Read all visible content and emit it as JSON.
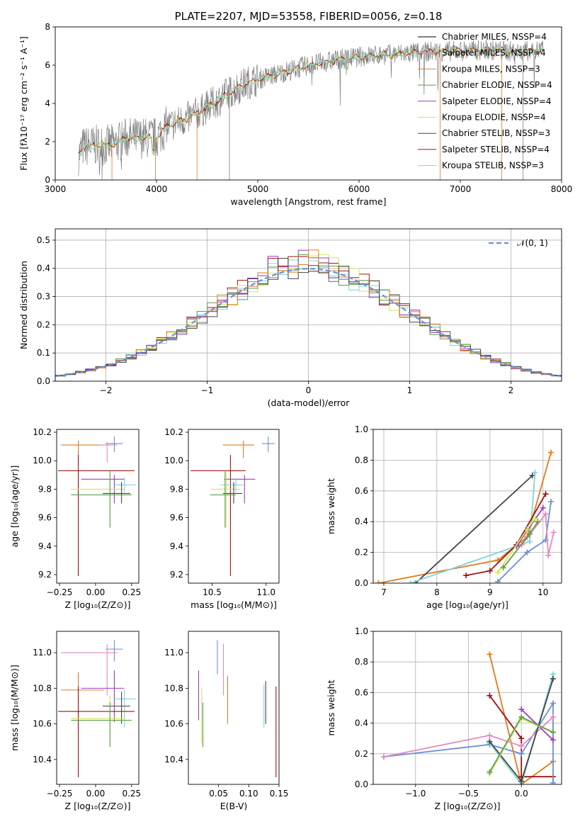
{
  "colors": {
    "chab_miles": "#6a8fd8",
    "salp_miles": "#e07a1f",
    "krou_miles": "#d9893f",
    "chab_elod": "#5f9e4c",
    "salp_elod": "#9b3fc0",
    "krou_elod": "#d5e35a",
    "chab_stel": "#444444",
    "salp_stel": "#a01010",
    "krou_stel": "#7fd3dc",
    "pink": "#e58ac0",
    "data": "#808080",
    "gauss": "#6a8fd8"
  },
  "chart_data": [
    {
      "type": "line",
      "title": "PLATE=2207, MJD=53558, FIBERID=0056, z=0.18",
      "xlabel": "wavelength [Angstrom, rest frame]",
      "ylabel": "Flux [fλ10⁻¹⁷ erg cm⁻² s⁻¹ A⁻¹]",
      "xlim": [
        3000,
        8000
      ],
      "ylim": [
        0,
        8
      ],
      "xticks": [
        "3000",
        "4000",
        "5000",
        "6000",
        "7000",
        "8000"
      ],
      "yticks": [
        "0",
        "2",
        "4",
        "6",
        "8"
      ],
      "legend_position": "top-right",
      "legend": [
        "Chabrier MILES, NSSP=4",
        "Salpeter MILES, NSSP=4",
        "Kroupa MILES, NSSP=3",
        "Chabrier ELODIE, NSSP=4",
        "Salpeter ELODIE, NSSP=4",
        "Kroupa ELODIE, NSSP=4",
        "Chabrier STELIB, NSSP=3",
        "Salpeter STELIB, NSSP=4",
        "Kroupa STELIB, NSSP=3"
      ],
      "legend_colors": [
        "#000000",
        "#e58ac0",
        "#d9893f",
        "#5f9e4c",
        "#9b3fc0",
        "#d5e35a",
        "#444444",
        "#a01010",
        "#7fd3dc"
      ],
      "model_continuum": [
        [
          3230,
          1.3
        ],
        [
          3280,
          1.75
        ],
        [
          3400,
          1.8
        ],
        [
          3500,
          1.8
        ],
        [
          3600,
          1.9
        ],
        [
          3700,
          2.2
        ],
        [
          3800,
          2.2
        ],
        [
          3900,
          2.2
        ],
        [
          4000,
          2.2
        ],
        [
          4100,
          2.8
        ],
        [
          4300,
          3.2
        ],
        [
          4500,
          3.8
        ],
        [
          4700,
          4.5
        ],
        [
          4900,
          5.1
        ],
        [
          5100,
          5.4
        ],
        [
          5300,
          5.7
        ],
        [
          5500,
          6.0
        ],
        [
          5800,
          6.3
        ],
        [
          6100,
          6.5
        ],
        [
          6400,
          6.6
        ],
        [
          6700,
          6.7
        ],
        [
          7000,
          6.75
        ],
        [
          7300,
          6.8
        ],
        [
          7600,
          6.7
        ],
        [
          7800,
          6.8
        ]
      ]
    },
    {
      "type": "line",
      "xlabel": "(data-model)/error",
      "ylabel": "Normed distribution",
      "xlim": [
        -2.5,
        2.5
      ],
      "ylim": [
        0,
        0.54
      ],
      "xticks": [
        "−2",
        "−1",
        "0",
        "1",
        "2"
      ],
      "yticks": [
        "0.0",
        "0.1",
        "0.2",
        "0.3",
        "0.4",
        "0.5"
      ],
      "legend": [
        "𝒩(0, 1)"
      ],
      "legend_position": "top-right",
      "grid": true
    },
    {
      "type": "scatter",
      "xlabel": "Z [log₁₀(Z/Z⊙)]",
      "ylabel": "age  [log₁₀(age/yr)]",
      "xlim": [
        -0.27,
        0.3
      ],
      "ylim": [
        9.14,
        10.22
      ],
      "xticks": [
        "−0.25",
        "0.00",
        "0.25"
      ],
      "yticks": [
        "9.2",
        "9.4",
        "9.6",
        "9.8",
        "10.0",
        "10.2"
      ],
      "points": [
        {
          "c": "chab_miles",
          "x": 0.13,
          "y": 10.12,
          "xl": 0.07,
          "xh": 0.19,
          "yl": 10.06,
          "yh": 10.17
        },
        {
          "c": "salp_miles",
          "x": -0.12,
          "y": 10.11,
          "xl": -0.24,
          "xh": 0.06,
          "yl": 10.02,
          "yh": 10.14
        },
        {
          "c": "pink",
          "x": 0.08,
          "y": 10.11,
          "xl": 0.02,
          "xh": 0.15,
          "yl": 9.99,
          "yh": 10.13
        },
        {
          "c": "salp_stel",
          "x": -0.12,
          "y": 9.93,
          "xl": -0.26,
          "xh": 0.27,
          "yl": 9.19,
          "yh": 10.04
        },
        {
          "c": "salp_elod",
          "x": 0.13,
          "y": 9.87,
          "xl": -0.1,
          "xh": 0.2,
          "yl": 9.7,
          "yh": 9.9
        },
        {
          "c": "krou_stel",
          "x": 0.2,
          "y": 9.83,
          "xl": 0.13,
          "xh": 0.28,
          "yl": 9.78,
          "yh": 9.88
        },
        {
          "c": "krou_elod",
          "x": 0.1,
          "y": 9.8,
          "xl": -0.17,
          "xh": 0.2,
          "yl": 9.53,
          "yh": 9.92
        },
        {
          "c": "chab_stel",
          "x": 0.18,
          "y": 9.77,
          "xl": 0.05,
          "xh": 0.24,
          "yl": 9.7,
          "yh": 9.85
        },
        {
          "c": "chab_elod",
          "x": 0.1,
          "y": 9.76,
          "xl": -0.17,
          "xh": 0.25,
          "yl": 9.53,
          "yh": 9.93
        }
      ]
    },
    {
      "type": "scatter",
      "xlabel": "mass [log₁₀(M/M⊙)]",
      "xlim": [
        10.28,
        11.12
      ],
      "ylim": [
        9.14,
        10.22
      ],
      "xticks": [
        "10.5",
        "11.0"
      ],
      "yticks": [
        "9.2",
        "9.4",
        "9.6",
        "9.8",
        "10.0",
        "10.2"
      ],
      "points": [
        {
          "c": "chab_miles",
          "x": 11.02,
          "y": 10.12,
          "xl": 10.96,
          "xh": 11.08,
          "yl": 10.06,
          "yh": 10.17
        },
        {
          "c": "salp_miles",
          "x": 10.79,
          "y": 10.11,
          "xl": 10.6,
          "xh": 10.89,
          "yl": 10.02,
          "yh": 10.14
        },
        {
          "c": "salp_stel",
          "x": 10.67,
          "y": 9.93,
          "xl": 10.3,
          "xh": 10.81,
          "yl": 9.19,
          "yh": 10.04
        },
        {
          "c": "salp_elod",
          "x": 10.8,
          "y": 9.87,
          "xl": 10.61,
          "xh": 10.9,
          "yl": 9.7,
          "yh": 9.9
        },
        {
          "c": "krou_stel",
          "x": 10.72,
          "y": 9.83,
          "xl": 10.58,
          "xh": 10.79,
          "yl": 9.78,
          "yh": 9.88
        },
        {
          "c": "krou_elod",
          "x": 10.63,
          "y": 9.8,
          "xl": 10.49,
          "xh": 10.76,
          "yl": 9.53,
          "yh": 9.92
        },
        {
          "c": "chab_stel",
          "x": 10.7,
          "y": 9.77,
          "xl": 10.6,
          "xh": 10.78,
          "yl": 9.7,
          "yh": 9.85
        },
        {
          "c": "chab_elod",
          "x": 10.62,
          "y": 9.76,
          "xl": 10.48,
          "xh": 10.72,
          "yl": 9.53,
          "yh": 9.93
        }
      ]
    },
    {
      "type": "line",
      "xlabel": "age  [log₁₀(age/yr)]",
      "ylabel": "mass weight",
      "xlim": [
        6.8,
        10.35
      ],
      "ylim": [
        0,
        1.0
      ],
      "xticks": [
        "7",
        "8",
        "9",
        "10"
      ],
      "yticks": [
        "0.0",
        "0.2",
        "0.4",
        "0.6",
        "0.8",
        "1.0"
      ],
      "grid": true,
      "series": [
        {
          "c": "salp_miles",
          "pts": [
            [
              6.9,
              0.0
            ],
            [
              9.15,
              0.15
            ],
            [
              9.7,
              0.3
            ],
            [
              10.15,
              0.85
            ]
          ]
        },
        {
          "c": "chab_stel",
          "pts": [
            [
              7.6,
              0.0
            ],
            [
              9.8,
              0.7
            ]
          ]
        },
        {
          "c": "krou_stel",
          "pts": [
            [
              7.5,
              0.0
            ],
            [
              9.75,
              0.27
            ],
            [
              9.85,
              0.72
            ]
          ]
        },
        {
          "c": "chab_miles",
          "pts": [
            [
              9.15,
              0.01
            ],
            [
              9.7,
              0.2
            ],
            [
              10.05,
              0.28
            ],
            [
              10.15,
              0.53
            ]
          ]
        },
        {
          "c": "salp_stel",
          "pts": [
            [
              8.55,
              0.05
            ],
            [
              9.0,
              0.08
            ],
            [
              9.5,
              0.25
            ],
            [
              10.05,
              0.58
            ]
          ]
        },
        {
          "c": "pink",
          "pts": [
            [
              9.6,
              0.25
            ],
            [
              10.05,
              0.45
            ],
            [
              10.1,
              0.18
            ],
            [
              10.2,
              0.33
            ]
          ]
        },
        {
          "c": "salp_elod",
          "pts": [
            [
              9.5,
              0.24
            ],
            [
              10.0,
              0.49
            ]
          ]
        },
        {
          "c": "krou_elod",
          "pts": [
            [
              9.15,
              0.07
            ],
            [
              9.7,
              0.35
            ],
            [
              9.85,
              0.42
            ]
          ]
        },
        {
          "c": "chab_elod",
          "pts": [
            [
              9.25,
              0.1
            ],
            [
              9.75,
              0.32
            ],
            [
              9.9,
              0.4
            ]
          ]
        }
      ]
    },
    {
      "type": "scatter",
      "xlabel": "Z [log₁₀(Z/Z⊙)]",
      "ylabel": "mass [log₁₀(M/M⊙)]",
      "xlim": [
        -0.27,
        0.3
      ],
      "ylim": [
        10.26,
        11.12
      ],
      "xticks": [
        "−0.25",
        "0.00",
        "0.25"
      ],
      "yticks": [
        "10.4",
        "10.6",
        "10.8",
        "11.0"
      ],
      "points": [
        {
          "c": "chab_miles",
          "x": 0.13,
          "y": 11.02,
          "xl": 0.07,
          "xh": 0.19,
          "yl": 10.95,
          "yh": 11.07
        },
        {
          "c": "pink",
          "x": 0.08,
          "y": 11.0,
          "xl": -0.24,
          "xh": 0.15,
          "yl": 10.76,
          "yh": 11.05
        },
        {
          "c": "salp_miles",
          "x": -0.12,
          "y": 10.79,
          "xl": -0.24,
          "xh": 0.06,
          "yl": 10.6,
          "yh": 10.89
        },
        {
          "c": "salp_elod",
          "x": 0.13,
          "y": 10.8,
          "xl": -0.1,
          "xh": 0.2,
          "yl": 10.61,
          "yh": 10.9
        },
        {
          "c": "krou_stel",
          "x": 0.2,
          "y": 10.74,
          "xl": 0.13,
          "xh": 0.28,
          "yl": 10.58,
          "yh": 10.79
        },
        {
          "c": "chab_stel",
          "x": 0.18,
          "y": 10.7,
          "xl": 0.05,
          "xh": 0.24,
          "yl": 10.6,
          "yh": 10.78
        },
        {
          "c": "salp_stel",
          "x": -0.12,
          "y": 10.67,
          "xl": -0.26,
          "xh": 0.27,
          "yl": 10.3,
          "yh": 10.81
        },
        {
          "c": "krou_elod",
          "x": 0.1,
          "y": 10.63,
          "xl": -0.17,
          "xh": 0.2,
          "yl": 10.49,
          "yh": 10.76
        },
        {
          "c": "chab_elod",
          "x": 0.1,
          "y": 10.62,
          "xl": -0.17,
          "xh": 0.25,
          "yl": 10.47,
          "yh": 10.72
        }
      ]
    },
    {
      "type": "scatter",
      "xlabel": "E(B-V)",
      "xlim": [
        0.0,
        0.15
      ],
      "ylim": [
        10.26,
        11.12
      ],
      "xticks": [
        "0.05",
        "0.10",
        "0.15"
      ],
      "yticks": [
        "10.4",
        "10.6",
        "10.8",
        "11.0"
      ],
      "points": [
        {
          "c": "chab_miles",
          "x": 0.048,
          "y": 11.0,
          "yl": 10.88,
          "yh": 11.07
        },
        {
          "c": "pink",
          "x": 0.058,
          "y": 10.95,
          "yl": 10.76,
          "yh": 11.05
        },
        {
          "c": "salp_miles",
          "x": 0.065,
          "y": 10.75,
          "yl": 10.6,
          "yh": 10.87
        },
        {
          "c": "salp_elod",
          "x": 0.017,
          "y": 10.8,
          "yl": 10.62,
          "yh": 10.9
        },
        {
          "c": "krou_elod",
          "x": 0.022,
          "y": 10.65,
          "yl": 10.49,
          "yh": 10.8
        },
        {
          "c": "chab_elod",
          "x": 0.024,
          "y": 10.62,
          "yl": 10.47,
          "yh": 10.72
        },
        {
          "c": "krou_stel",
          "x": 0.125,
          "y": 10.72,
          "yl": 10.58,
          "yh": 10.82
        },
        {
          "c": "chab_stel",
          "x": 0.128,
          "y": 10.72,
          "yl": 10.6,
          "yh": 10.84
        },
        {
          "c": "salp_stel",
          "x": 0.145,
          "y": 10.6,
          "yl": 10.3,
          "yh": 10.81
        }
      ]
    },
    {
      "type": "line",
      "xlabel": "Z [log₁₀(Z/Z⊙)]",
      "ylabel": "mass weight",
      "xlim": [
        -1.4,
        0.38
      ],
      "ylim": [
        0,
        1.0
      ],
      "xticks": [
        "−1.0",
        "−0.5",
        "0.0"
      ],
      "yticks": [
        "0.0",
        "0.2",
        "0.4",
        "0.6",
        "0.8",
        "1.0"
      ],
      "grid": true,
      "series": [
        {
          "c": "salp_miles",
          "pts": [
            [
              -0.3,
              0.85
            ],
            [
              0.0,
              0.0
            ],
            [
              0.3,
              0.15
            ]
          ]
        },
        {
          "c": "salp_stel",
          "pts": [
            [
              -0.3,
              0.58
            ],
            [
              0.0,
              0.3
            ],
            [
              0.0,
              0.05
            ],
            [
              0.3,
              0.05
            ]
          ]
        },
        {
          "c": "chab_miles",
          "pts": [
            [
              -1.3,
              0.18
            ],
            [
              -0.3,
              0.26
            ],
            [
              0.0,
              0.2
            ],
            [
              0.3,
              0.53
            ],
            [
              0.3,
              0.01
            ]
          ]
        },
        {
          "c": "pink",
          "pts": [
            [
              -1.3,
              0.18
            ],
            [
              -0.3,
              0.32
            ],
            [
              0.0,
              0.25
            ],
            [
              0.3,
              0.44
            ]
          ]
        },
        {
          "c": "krou_stel",
          "pts": [
            [
              -0.3,
              0.27
            ],
            [
              0.0,
              0.0
            ],
            [
              0.3,
              0.72
            ]
          ]
        },
        {
          "c": "chab_stel",
          "pts": [
            [
              -0.3,
              0.28
            ],
            [
              0.0,
              0.02
            ],
            [
              0.3,
              0.69
            ]
          ]
        },
        {
          "c": "salp_elod",
          "pts": [
            [
              0.0,
              0.49
            ],
            [
              0.3,
              0.29
            ]
          ]
        },
        {
          "c": "krou_elod",
          "pts": [
            [
              -0.3,
              0.07
            ],
            [
              0.0,
              0.43
            ],
            [
              0.3,
              0.34
            ]
          ]
        },
        {
          "c": "chab_elod",
          "pts": [
            [
              -0.3,
              0.08
            ],
            [
              0.0,
              0.44
            ],
            [
              0.3,
              0.34
            ]
          ]
        }
      ]
    }
  ]
}
